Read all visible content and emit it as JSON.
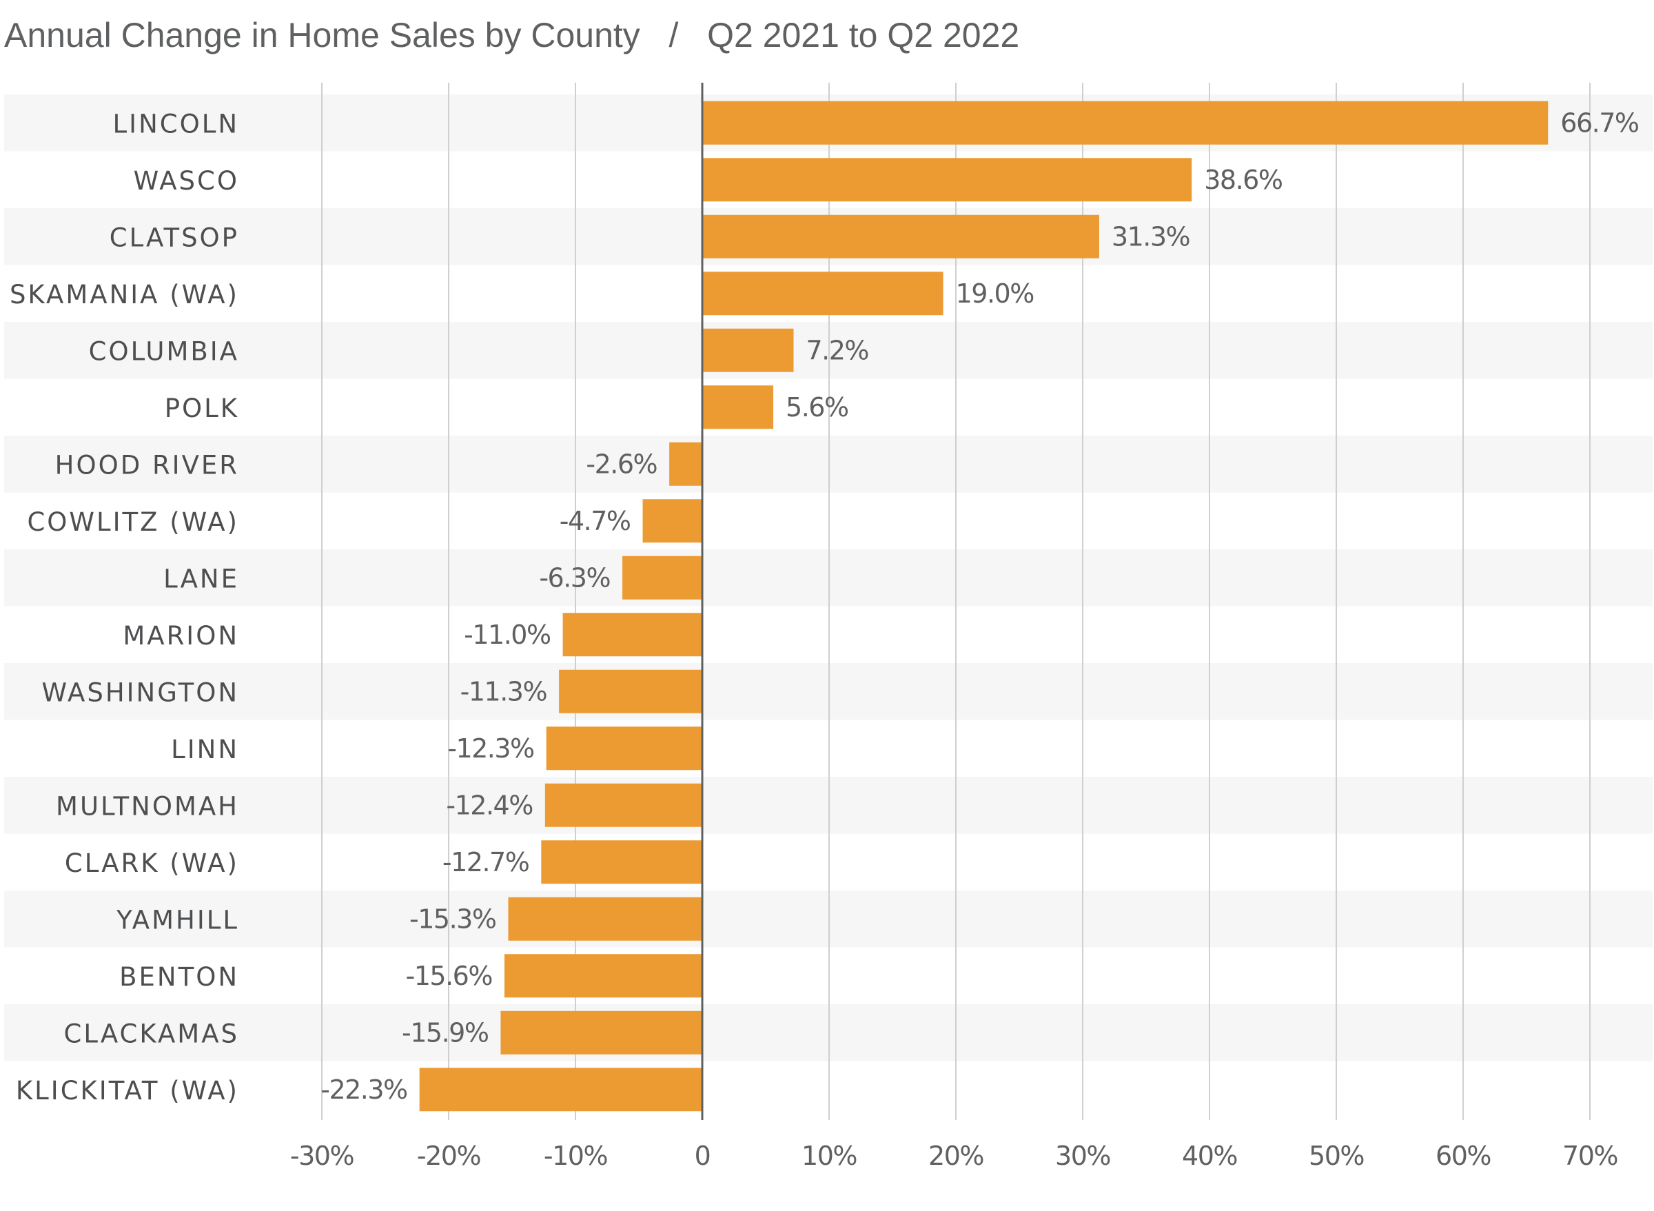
{
  "chart_data": {
    "type": "bar",
    "orientation": "horizontal",
    "title": "Annual Change in Home Sales by County",
    "separator": "/",
    "subtitle": "Q2 2021 to Q2 2022",
    "categories": [
      "LINCOLN",
      "WASCO",
      "CLATSOP",
      "SKAMANIA (WA)",
      "COLUMBIA",
      "POLK",
      "HOOD RIVER",
      "COWLITZ (WA)",
      "LANE",
      "MARION",
      "WASHINGTON",
      "LINN",
      "MULTNOMAH",
      "CLARK (WA)",
      "YAMHILL",
      "BENTON",
      "CLACKAMAS",
      "KLICKITAT (WA)"
    ],
    "values": [
      66.7,
      38.6,
      31.3,
      19.0,
      7.2,
      5.6,
      -2.6,
      -4.7,
      -6.3,
      -11.0,
      -11.3,
      -12.3,
      -12.4,
      -12.7,
      -15.3,
      -15.6,
      -15.9,
      -22.3
    ],
    "value_labels": [
      "66.7%",
      "38.6%",
      "31.3%",
      "19.0%",
      "7.2%",
      "5.6%",
      "-2.6%",
      "-4.7%",
      "-6.3%",
      "-11.0%",
      "-11.3%",
      "-12.3%",
      "-12.4%",
      "-12.7%",
      "-15.3%",
      "-15.6%",
      "-15.9%",
      "-22.3%"
    ],
    "xticks": [
      -30,
      -20,
      -10,
      0,
      10,
      20,
      30,
      40,
      50,
      60,
      70
    ],
    "xtick_labels": [
      "-30%",
      "-20%",
      "-10%",
      "0",
      "10%",
      "20%",
      "30%",
      "40%",
      "50%",
      "60%",
      "70%"
    ],
    "xlim": [
      -30,
      70
    ],
    "xlabel": "",
    "ylabel": "",
    "grid": true,
    "bar_color": "#ec9b33",
    "band_color": "#f6f6f6",
    "grid_color": "#cfcfcf",
    "zero_line_color": "#5f6061"
  }
}
